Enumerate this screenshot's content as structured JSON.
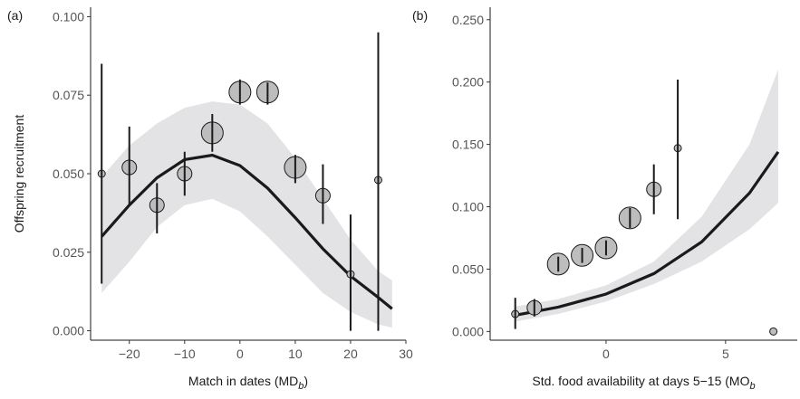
{
  "chart_data": [
    {
      "type": "scatter",
      "panel_label": "(a)",
      "y_label": "Offspring recruitment",
      "x_label": {
        "text": "Match in dates (MD",
        "sub": "b",
        "close": ")"
      },
      "xlim": [
        -27,
        30
      ],
      "xticks": [
        {
          "value": -20,
          "label": "−20"
        },
        {
          "value": -10,
          "label": "−10"
        },
        0,
        10,
        20,
        30
      ],
      "ylim": [
        -0.003,
        0.103
      ],
      "yticks": [
        {
          "value": 0,
          "label": "0.000"
        },
        {
          "value": 0.025,
          "label": "0.025"
        },
        {
          "value": 0.05,
          "label": "0.050"
        },
        {
          "value": 0.075,
          "label": "0.075"
        },
        {
          "value": 0.1,
          "label": "0.100"
        }
      ],
      "x": [
        -25,
        -20,
        -15,
        -10,
        -5,
        0,
        5,
        10,
        15,
        20,
        25
      ],
      "values": [
        0.05,
        0.052,
        0.04,
        0.05,
        0.063,
        0.076,
        0.076,
        0.052,
        0.043,
        0.018,
        0.048
      ],
      "lower": [
        0.015,
        0.04,
        0.031,
        0.043,
        0.057,
        0.072,
        0.072,
        0.047,
        0.034,
        0.0,
        0.0
      ],
      "upper": [
        0.085,
        0.065,
        0.047,
        0.057,
        0.069,
        0.08,
        0.079,
        0.056,
        0.053,
        0.037,
        0.095
      ],
      "sizes": [
        1,
        2,
        2,
        2,
        3,
        3,
        3,
        3,
        2,
        1,
        1
      ],
      "color": "#bdbdbd",
      "fit": {
        "color": "#1a1a1a",
        "band_color": "#e3e3e5",
        "x": [
          -25,
          -20,
          -15,
          -10,
          -5,
          0,
          5,
          10,
          15,
          20,
          25,
          27.5
        ],
        "values": [
          0.03,
          0.04,
          0.0487,
          0.0545,
          0.0559,
          0.0526,
          0.0454,
          0.036,
          0.0261,
          0.0174,
          0.0106,
          0.007
        ],
        "upper": [
          0.049,
          0.059,
          0.066,
          0.071,
          0.073,
          0.072,
          0.066,
          0.055,
          0.042,
          0.029,
          0.019,
          0.016
        ],
        "lower": [
          0.012,
          0.022,
          0.033,
          0.04,
          0.042,
          0.038,
          0.03,
          0.021,
          0.012,
          0.006,
          0.002,
          0.001
        ]
      }
    },
    {
      "type": "scatter",
      "panel_label": "(b)",
      "x_label": {
        "text": "Std. food availability at days 5−15 (MO",
        "sub": "b"
      },
      "xlim": [
        -4.85,
        8
      ],
      "xticks": [
        0,
        5
      ],
      "ylim": [
        -0.007,
        0.26
      ],
      "yticks": [
        {
          "value": 0,
          "label": "0.000"
        },
        {
          "value": 0.05,
          "label": "0.050"
        },
        {
          "value": 0.1,
          "label": "0.100"
        },
        {
          "value": 0.15,
          "label": "0.150"
        },
        {
          "value": 0.2,
          "label": "0.200"
        },
        {
          "value": 0.25,
          "label": "0.250"
        }
      ],
      "x": [
        -3.8,
        -3,
        -2,
        -1,
        0,
        1,
        2,
        3,
        7
      ],
      "values": [
        0.014,
        0.019,
        0.054,
        0.061,
        0.067,
        0.091,
        0.114,
        0.147,
        0.0
      ],
      "lower": [
        0.002,
        0.012,
        0.048,
        0.055,
        0.061,
        0.083,
        0.094,
        0.09,
        null
      ],
      "upper": [
        0.027,
        0.026,
        0.06,
        0.067,
        0.073,
        0.099,
        0.134,
        0.202,
        null
      ],
      "sizes": [
        1,
        2,
        3,
        3,
        3,
        3,
        2,
        1,
        1
      ],
      "color": "#bdbdbd",
      "fit": {
        "color": "#1a1a1a",
        "band_color": "#e3e3e5",
        "x": [
          -3.8,
          -2,
          0,
          2,
          4,
          6,
          7.2
        ],
        "values": [
          0.013,
          0.0195,
          0.03,
          0.0464,
          0.0718,
          0.111,
          0.144
        ],
        "upper": [
          0.02,
          0.026,
          0.037,
          0.056,
          0.092,
          0.15,
          0.21
        ],
        "lower": [
          0.008,
          0.014,
          0.024,
          0.038,
          0.056,
          0.082,
          0.103
        ]
      }
    }
  ]
}
